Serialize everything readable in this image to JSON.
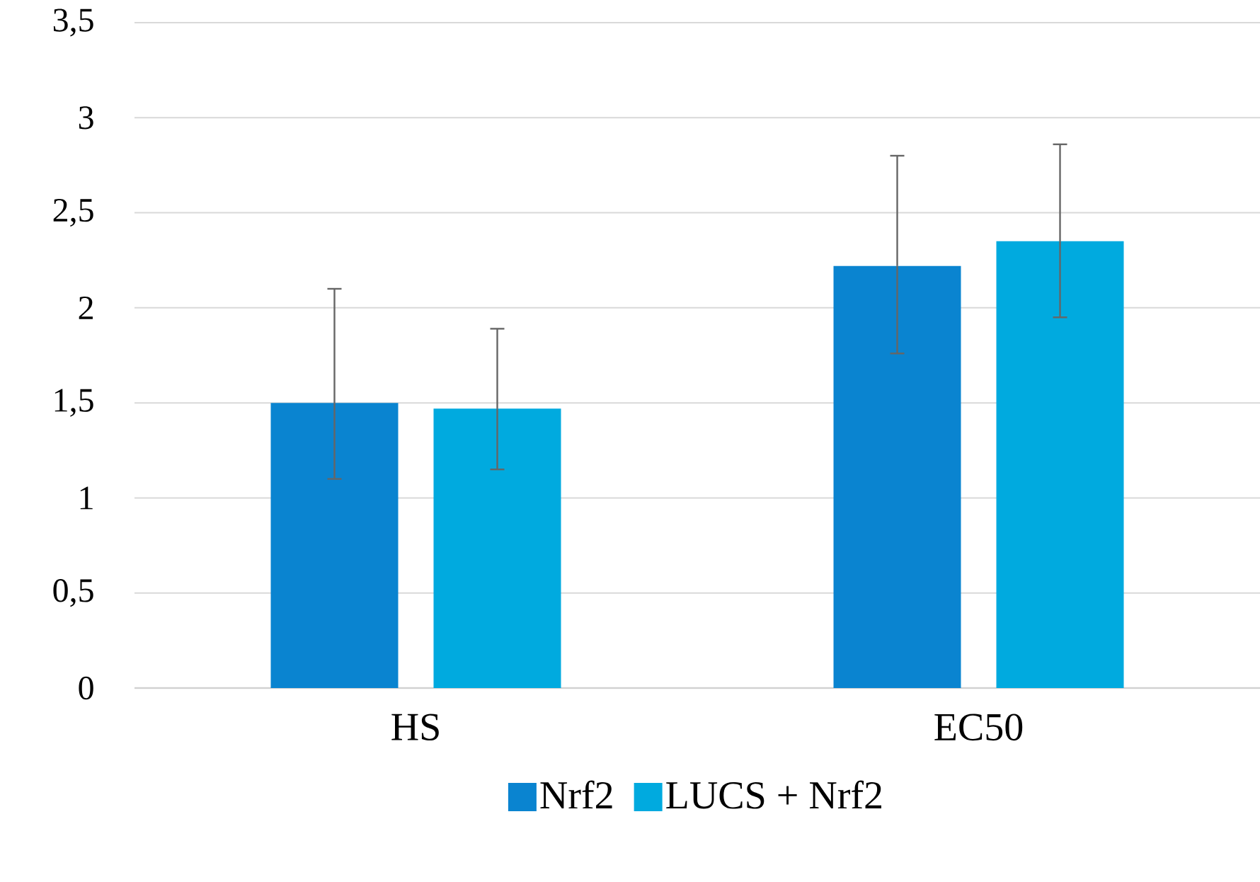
{
  "chart_data": {
    "type": "bar",
    "categories": [
      "HS",
      "EC50"
    ],
    "series": [
      {
        "name": "Nrf2",
        "color": "#0a84d0",
        "values": [
          1.5,
          2.22
        ],
        "errors": [
          [
            1.1,
            2.1
          ],
          [
            1.76,
            2.8
          ]
        ]
      },
      {
        "name": "LUCS + Nrf2",
        "color": "#00aadf",
        "values": [
          1.47,
          2.35
        ],
        "errors": [
          [
            1.15,
            1.89
          ],
          [
            1.95,
            2.86
          ]
        ]
      }
    ],
    "ylim": [
      0,
      3.5
    ],
    "yticks": [
      0,
      {
        "value": 0.5,
        "label": "0,5"
      },
      1,
      {
        "value": 1.5,
        "label": "1,5"
      },
      2,
      {
        "value": 2.5,
        "label": "2,5"
      },
      3,
      {
        "value": 3.5,
        "label": "3,5"
      }
    ],
    "grid": "y",
    "legend": "bottom"
  }
}
